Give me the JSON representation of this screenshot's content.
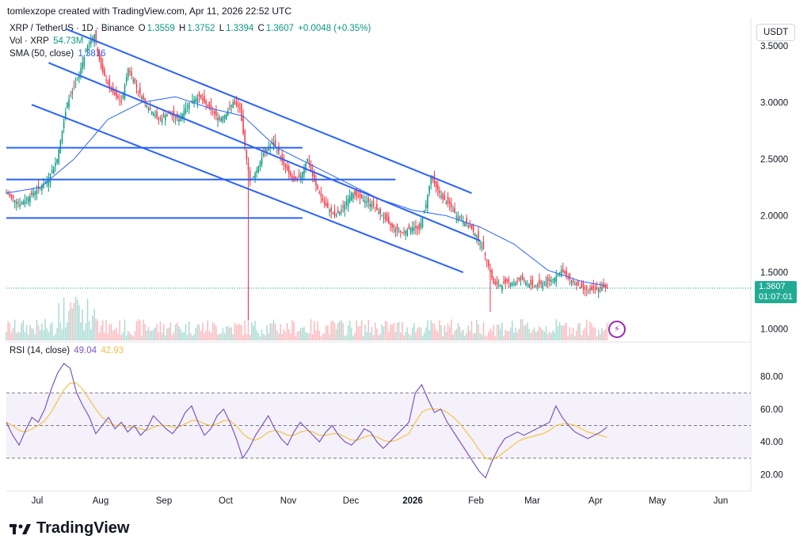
{
  "header": {
    "text": "tomlexzope created with TradingView.com, Apr 11, 2026 22:52 UTC"
  },
  "legend": {
    "symbol": "XRP / TetherUS · 1D · Binance",
    "o_label": "O",
    "o": "1.3559",
    "h_label": "H",
    "h": "1.3752",
    "l_label": "L",
    "l": "1.3394",
    "c_label": "C",
    "c": "1.3607",
    "change": "+0.0048 (+0.35%)",
    "vol_label": "Vol · XRP",
    "vol": "54.73M",
    "sma_label": "SMA (50, close)",
    "sma": "1.3816",
    "rsi_label": "RSI (14, close)",
    "rsi": "49.04",
    "rsi_ma": "42.93"
  },
  "currency_button": "USDT",
  "price_tag": {
    "price": "1.3607",
    "countdown": "01:07:01"
  },
  "colors": {
    "up": "#089981",
    "down": "#f23645",
    "trend": "#2962ff",
    "rsi": "#7e57c2",
    "rsi_ma": "#f5c342",
    "band": "#ede7f6"
  },
  "brand": {
    "name": "TradingView",
    "icon": "tradingview-logo-icon"
  },
  "chart_data": [
    {
      "type": "candlestick",
      "title": "XRP / TetherUS · 1D · Binance",
      "y_ticks": [
        "3.5000",
        "3.0000",
        "2.5000",
        "2.0000",
        "1.5000",
        "1.0000"
      ],
      "ylim": [
        0.9,
        3.75
      ],
      "x_ticks": [
        "Jul",
        "Aug",
        "Sep",
        "Oct",
        "Nov",
        "Dec",
        "2026",
        "Feb",
        "Mar",
        "Apr",
        "May",
        "Jun"
      ],
      "close_path": [
        [
          0,
          2.2
        ],
        [
          8,
          2.1
        ],
        [
          16,
          2.2
        ],
        [
          24,
          2.3
        ],
        [
          30,
          2.5
        ],
        [
          36,
          3.0
        ],
        [
          42,
          3.2
        ],
        [
          48,
          3.5
        ],
        [
          52,
          3.6
        ],
        [
          56,
          3.3
        ],
        [
          62,
          3.1
        ],
        [
          68,
          3.0
        ],
        [
          72,
          3.3
        ],
        [
          78,
          3.1
        ],
        [
          84,
          2.95
        ],
        [
          90,
          2.85
        ],
        [
          96,
          2.9
        ],
        [
          102,
          2.85
        ],
        [
          108,
          3.0
        ],
        [
          114,
          3.05
        ],
        [
          120,
          2.95
        ],
        [
          126,
          2.85
        ],
        [
          130,
          2.9
        ],
        [
          134,
          3.0
        ],
        [
          138,
          2.95
        ],
        [
          142,
          2.5
        ],
        [
          144,
          2.3
        ],
        [
          148,
          2.4
        ],
        [
          152,
          2.55
        ],
        [
          158,
          2.65
        ],
        [
          164,
          2.45
        ],
        [
          170,
          2.3
        ],
        [
          174,
          2.35
        ],
        [
          178,
          2.5
        ],
        [
          182,
          2.3
        ],
        [
          188,
          2.1
        ],
        [
          194,
          2.0
        ],
        [
          198,
          2.05
        ],
        [
          204,
          2.2
        ],
        [
          210,
          2.15
        ],
        [
          216,
          2.1
        ],
        [
          222,
          2.0
        ],
        [
          228,
          1.9
        ],
        [
          234,
          1.85
        ],
        [
          240,
          1.9
        ],
        [
          244,
          1.88
        ],
        [
          248,
          2.1
        ],
        [
          251,
          2.35
        ],
        [
          254,
          2.25
        ],
        [
          258,
          2.15
        ],
        [
          262,
          2.1
        ],
        [
          266,
          2.0
        ],
        [
          270,
          1.95
        ],
        [
          274,
          1.9
        ],
        [
          278,
          1.82
        ],
        [
          282,
          1.7
        ],
        [
          285,
          1.55
        ],
        [
          288,
          1.4
        ],
        [
          292,
          1.38
        ],
        [
          296,
          1.42
        ],
        [
          300,
          1.4
        ],
        [
          304,
          1.45
        ],
        [
          308,
          1.4
        ],
        [
          312,
          1.38
        ],
        [
          316,
          1.4
        ],
        [
          320,
          1.42
        ],
        [
          324,
          1.45
        ],
        [
          328,
          1.52
        ],
        [
          332,
          1.45
        ],
        [
          336,
          1.4
        ],
        [
          340,
          1.36
        ],
        [
          344,
          1.34
        ],
        [
          348,
          1.35
        ],
        [
          352,
          1.37
        ],
        [
          355,
          1.3607
        ]
      ],
      "sma_50_path": [
        [
          0,
          2.2
        ],
        [
          20,
          2.25
        ],
        [
          40,
          2.5
        ],
        [
          60,
          2.85
        ],
        [
          80,
          3.0
        ],
        [
          100,
          3.05
        ],
        [
          120,
          2.95
        ],
        [
          140,
          2.88
        ],
        [
          160,
          2.6
        ],
        [
          180,
          2.45
        ],
        [
          200,
          2.3
        ],
        [
          220,
          2.15
        ],
        [
          240,
          2.05
        ],
        [
          260,
          2.0
        ],
        [
          280,
          1.9
        ],
        [
          300,
          1.75
        ],
        [
          320,
          1.52
        ],
        [
          340,
          1.42
        ],
        [
          355,
          1.3816
        ]
      ],
      "min_wick": 1.08,
      "trend_lines": [
        {
          "from": [
            35,
            3.65
          ],
          "to": [
            275,
            2.2
          ]
        },
        {
          "from": [
            25,
            3.35
          ],
          "to": [
            280,
            1.78
          ]
        },
        {
          "from": [
            15,
            2.98
          ],
          "to": [
            270,
            1.5
          ]
        }
      ],
      "support_lines": [
        2.6,
        2.32,
        1.98
      ],
      "last_price": 1.3607,
      "volume": {
        "label": "Vol · XRP",
        "last": 54.73,
        "unit": "M"
      }
    },
    {
      "type": "line",
      "title": "RSI (14, close)",
      "y_ticks": [
        "80.00",
        "60.00",
        "40.00",
        "20.00"
      ],
      "ylim": [
        10,
        90
      ],
      "bands": [
        30,
        50,
        70
      ],
      "series": [
        {
          "name": "RSI (14, close)",
          "last": 49.04,
          "values": [
            52,
            44,
            38,
            47,
            55,
            52,
            60,
            72,
            82,
            88,
            85,
            70,
            62,
            55,
            45,
            50,
            55,
            48,
            52,
            46,
            50,
            44,
            48,
            56,
            52,
            48,
            45,
            50,
            58,
            62,
            52,
            44,
            48,
            56,
            60,
            52,
            42,
            30,
            36,
            44,
            50,
            56,
            48,
            42,
            38,
            46,
            52,
            48,
            44,
            40,
            46,
            50,
            44,
            40,
            38,
            42,
            48,
            46,
            40,
            36,
            40,
            44,
            48,
            52,
            70,
            75,
            66,
            58,
            60,
            52,
            46,
            40,
            34,
            28,
            22,
            18,
            28,
            36,
            42,
            44,
            46,
            44,
            46,
            48,
            50,
            52,
            62,
            55,
            50,
            46,
            44,
            42,
            44,
            46,
            49.04
          ]
        },
        {
          "name": "RSI-based MA",
          "last": 42.93,
          "values": [
            52,
            50,
            47,
            46,
            48,
            50,
            53,
            58,
            65,
            72,
            76,
            76,
            72,
            66,
            60,
            55,
            52,
            50,
            50,
            49,
            49,
            48,
            47,
            49,
            50,
            50,
            49,
            49,
            51,
            53,
            53,
            51,
            50,
            51,
            53,
            53,
            50,
            45,
            42,
            41,
            43,
            46,
            47,
            46,
            44,
            44,
            46,
            47,
            46,
            44,
            44,
            45,
            45,
            43,
            41,
            41,
            43,
            44,
            43,
            41,
            40,
            41,
            43,
            45,
            52,
            58,
            60,
            60,
            60,
            58,
            55,
            51,
            46,
            41,
            35,
            30,
            29,
            31,
            34,
            37,
            40,
            42,
            43,
            44,
            45,
            47,
            50,
            51,
            51,
            50,
            48,
            46,
            45,
            44,
            42.93
          ]
        }
      ]
    }
  ]
}
